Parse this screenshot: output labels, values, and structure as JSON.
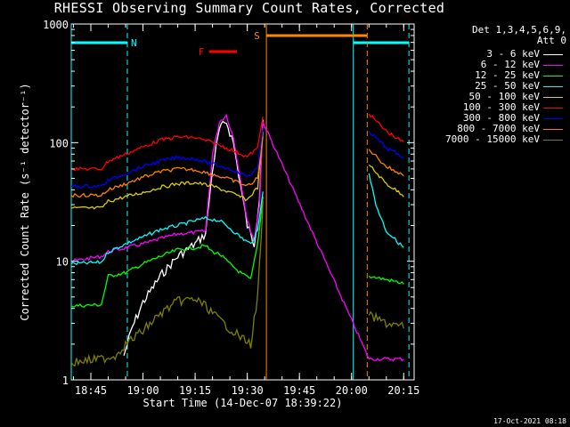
{
  "title": "RHESSI Observing Summary Count Rates, Corrected",
  "timestamp": "17-Oct-2021 08:18",
  "legend": {
    "detectors": "Det 1,3,4,5,6,9,",
    "attenuator": "Att 0"
  },
  "chart_data": {
    "type": "line",
    "title": "RHESSI Observing Summary Count Rates, Corrected",
    "xlabel": "Start Time (14-Dec-07 18:39:22)",
    "ylabel": "Corrected Count Rate (s⁻¹ detector⁻¹)",
    "ylim": [
      1,
      1000
    ],
    "yscale": "log",
    "xlim": [
      "18:39:22",
      "20:18:00"
    ],
    "x_ticks": [
      "18:45",
      "19:00",
      "19:15",
      "19:30",
      "19:45",
      "20:00",
      "20:15"
    ],
    "y_ticks": [
      "1",
      "10",
      "100",
      "1000"
    ],
    "flags": [
      {
        "label": "N",
        "color": "#00ffff",
        "segments": [
          [
            "18:39:22",
            "18:55:30"
          ],
          [
            "20:00:30",
            "20:16:30"
          ]
        ]
      },
      {
        "label": "F",
        "color": "#ff0000",
        "segments": [
          [
            "19:19:00",
            "19:27:00"
          ]
        ]
      },
      {
        "label": "S",
        "color": "#ff8800",
        "segments": [
          [
            "19:35:30",
            "20:04:30"
          ]
        ]
      }
    ],
    "series": [
      {
        "name": "3 - 6 keV",
        "color": "#ffffff",
        "points": [
          [
            "18:54:30",
            1.6
          ],
          [
            "18:57:00",
            2.8
          ],
          [
            "19:00:00",
            4.5
          ],
          [
            "19:05:00",
            7.5
          ],
          [
            "19:10:00",
            11
          ],
          [
            "19:15:00",
            14
          ],
          [
            "19:18:00",
            17
          ],
          [
            "19:20:00",
            60
          ],
          [
            "19:22:00",
            130
          ],
          [
            "19:24:00",
            150
          ],
          [
            "19:26:00",
            100
          ],
          [
            "19:28:00",
            45
          ],
          [
            "19:30:00",
            20
          ],
          [
            "19:32:00",
            14
          ],
          [
            "19:33:30",
            35
          ],
          [
            "19:34:30",
            160
          ]
        ]
      },
      {
        "name": "6 - 12 keV",
        "color": "#ff00ff",
        "points": [
          [
            "18:39:22",
            10
          ],
          [
            "18:48:00",
            11
          ],
          [
            "18:50:00",
            12
          ],
          [
            "18:55:00",
            13
          ],
          [
            "19:00:00",
            14
          ],
          [
            "19:05:00",
            15.5
          ],
          [
            "19:10:00",
            17
          ],
          [
            "19:15:00",
            17.5
          ],
          [
            "19:18:00",
            18
          ],
          [
            "19:20:00",
            80
          ],
          [
            "19:22:00",
            150
          ],
          [
            "19:24:00",
            170
          ],
          [
            "19:26:00",
            110
          ],
          [
            "19:28:00",
            50
          ],
          [
            "19:30:00",
            22
          ],
          [
            "19:32:00",
            15
          ],
          [
            "19:33:30",
            30
          ],
          [
            "19:34:30",
            150
          ],
          [
            "20:05:00",
            1.5
          ],
          [
            "20:10:00",
            1.5
          ],
          [
            "20:15:00",
            1.5
          ]
        ]
      },
      {
        "name": "12 - 25 keV",
        "color": "#00ff00",
        "points": [
          [
            "18:39:22",
            4.2
          ],
          [
            "18:48:00",
            4.3
          ],
          [
            "18:50:00",
            7.5
          ],
          [
            "18:55:00",
            8
          ],
          [
            "19:00:00",
            9.5
          ],
          [
            "19:05:00",
            11
          ],
          [
            "19:10:00",
            12.5
          ],
          [
            "19:15:00",
            13
          ],
          [
            "19:18:00",
            13.5
          ],
          [
            "19:20:00",
            12
          ],
          [
            "19:22:00",
            11.5
          ],
          [
            "19:25:00",
            9.5
          ],
          [
            "19:28:00",
            8
          ],
          [
            "19:31:00",
            7
          ],
          [
            "19:33:00",
            14
          ],
          [
            "19:34:30",
            35
          ],
          [
            "20:05:00",
            7.5
          ],
          [
            "20:10:00",
            7
          ],
          [
            "20:15:00",
            6.5
          ]
        ]
      },
      {
        "name": "25 - 50 keV",
        "color": "#00ffff",
        "points": [
          [
            "18:39:22",
            9.5
          ],
          [
            "18:48:00",
            9.8
          ],
          [
            "18:50:00",
            12
          ],
          [
            "18:55:00",
            14
          ],
          [
            "19:00:00",
            16
          ],
          [
            "19:05:00",
            18.5
          ],
          [
            "19:10:00",
            20
          ],
          [
            "19:15:00",
            22
          ],
          [
            "19:18:00",
            23
          ],
          [
            "19:22:00",
            22
          ],
          [
            "19:25:00",
            19
          ],
          [
            "19:28:00",
            16
          ],
          [
            "19:31:00",
            14
          ],
          [
            "19:33:00",
            18
          ],
          [
            "19:34:30",
            40
          ],
          [
            "20:05:00",
            55
          ],
          [
            "20:07:00",
            30
          ],
          [
            "20:10:00",
            18
          ],
          [
            "20:15:00",
            13
          ]
        ]
      },
      {
        "name": "50 - 100 keV",
        "color": "#ddcc00",
        "points": [
          [
            "18:39:22",
            28
          ],
          [
            "18:48:00",
            28
          ],
          [
            "18:50:00",
            32
          ],
          [
            "18:55:00",
            35
          ],
          [
            "19:00:00",
            38
          ],
          [
            "19:05:00",
            42
          ],
          [
            "19:10:00",
            45
          ],
          [
            "19:15:00",
            46
          ],
          [
            "19:20:00",
            43
          ],
          [
            "19:25:00",
            38
          ],
          [
            "19:30:00",
            33
          ],
          [
            "19:33:00",
            42
          ],
          [
            "19:34:30",
            120
          ],
          [
            "20:05:00",
            65
          ],
          [
            "20:10:00",
            45
          ],
          [
            "20:15:00",
            36
          ]
        ]
      },
      {
        "name": "100 - 300 keV",
        "color": "#ff0000",
        "points": [
          [
            "18:39:22",
            60
          ],
          [
            "18:48:00",
            60
          ],
          [
            "18:50:00",
            70
          ],
          [
            "18:55:00",
            80
          ],
          [
            "19:00:00",
            92
          ],
          [
            "19:05:00",
            105
          ],
          [
            "19:10:00",
            112
          ],
          [
            "19:15:00",
            110
          ],
          [
            "19:20:00",
            100
          ],
          [
            "19:25:00",
            88
          ],
          [
            "19:30:00",
            76
          ],
          [
            "19:33:00",
            90
          ],
          [
            "19:34:30",
            170
          ],
          [
            "20:05:00",
            175
          ],
          [
            "20:10:00",
            125
          ],
          [
            "20:15:00",
            100
          ]
        ]
      },
      {
        "name": "300 - 800 keV",
        "color": "#0000ff",
        "points": [
          [
            "18:39:22",
            43
          ],
          [
            "18:48:00",
            43
          ],
          [
            "18:50:00",
            48
          ],
          [
            "18:55:00",
            55
          ],
          [
            "19:00:00",
            63
          ],
          [
            "19:05:00",
            70
          ],
          [
            "19:10:00",
            75
          ],
          [
            "19:15:00",
            73
          ],
          [
            "19:20:00",
            66
          ],
          [
            "19:25:00",
            60
          ],
          [
            "19:30:00",
            52
          ],
          [
            "19:33:00",
            60
          ],
          [
            "19:34:30",
            135
          ],
          [
            "20:05:00",
            125
          ],
          [
            "20:10:00",
            90
          ],
          [
            "20:15:00",
            75
          ]
        ]
      },
      {
        "name": "800 - 7000 keV",
        "color": "#ff8000",
        "points": [
          [
            "18:39:22",
            36
          ],
          [
            "18:48:00",
            36
          ],
          [
            "18:50:00",
            40
          ],
          [
            "18:55:00",
            45
          ],
          [
            "19:00:00",
            51
          ],
          [
            "19:05:00",
            57
          ],
          [
            "19:10:00",
            60
          ],
          [
            "19:15:00",
            59
          ],
          [
            "19:20:00",
            54
          ],
          [
            "19:25:00",
            49
          ],
          [
            "19:30:00",
            43
          ],
          [
            "19:33:00",
            50
          ],
          [
            "19:34:30",
            110
          ],
          [
            "20:05:00",
            88
          ],
          [
            "20:10:00",
            63
          ],
          [
            "20:15:00",
            53
          ]
        ]
      },
      {
        "name": "7000 - 15000 keV",
        "color": "#808000",
        "points": [
          [
            "18:39:22",
            1.4
          ],
          [
            "18:48:00",
            1.5
          ],
          [
            "18:52:00",
            1.6
          ],
          [
            "18:55:00",
            2
          ],
          [
            "19:00:00",
            2.6
          ],
          [
            "19:05:00",
            3.6
          ],
          [
            "19:10:00",
            4.6
          ],
          [
            "19:15:00",
            4.8
          ],
          [
            "19:18:00",
            4.2
          ],
          [
            "19:22:00",
            3.2
          ],
          [
            "19:25:00",
            2.7
          ],
          [
            "19:28:00",
            2.3
          ],
          [
            "19:31:00",
            2.0
          ],
          [
            "19:33:00",
            5
          ],
          [
            "19:34:30",
            30
          ],
          [
            "20:05:00",
            3.5
          ],
          [
            "20:10:00",
            3
          ],
          [
            "20:15:00",
            2.8
          ]
        ]
      }
    ]
  }
}
